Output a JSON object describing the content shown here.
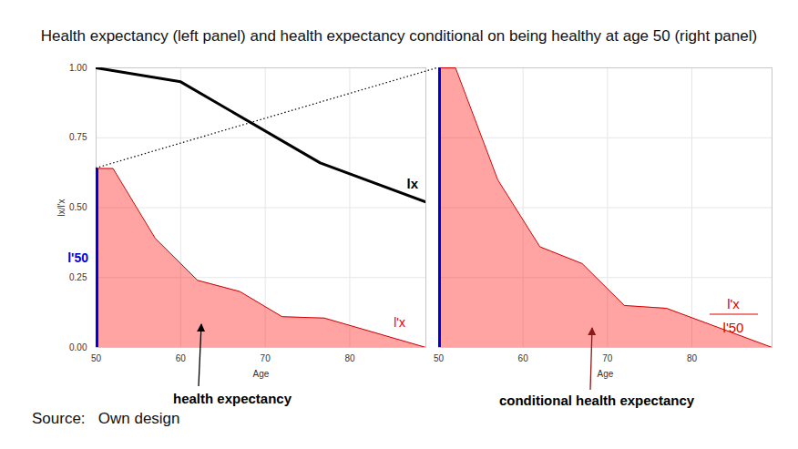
{
  "title": "Health expectancy (left panel) and health expectancy conditional on being healthy at age 50 (right panel)",
  "caption": "Source:   Own design",
  "chart_data": [
    {
      "type": "line",
      "xlabel": "Age",
      "ylabel": "lx/l'x",
      "xlim": [
        50,
        89
      ],
      "ylim": [
        0,
        1
      ],
      "xticks": [
        50,
        60,
        70,
        80
      ],
      "yticks": [
        {
          "value": 0,
          "label": "0.00"
        },
        {
          "value": 0.25,
          "label": "0.25"
        },
        {
          "value": 0.5,
          "label": "0.50"
        },
        {
          "value": 0.75,
          "label": "0.75"
        },
        {
          "value": 1,
          "label": "1.00"
        }
      ],
      "grid": true,
      "series": [
        {
          "name": "l'x",
          "type": "area",
          "color": "#ff0000",
          "x": [
            50,
            52,
            57,
            62,
            67,
            72,
            77,
            89
          ],
          "values": [
            0.64,
            0.64,
            0.39,
            0.24,
            0.2,
            0.11,
            0.105,
            0
          ]
        },
        {
          "name": "lx",
          "type": "line",
          "color": "#000000",
          "x": [
            50,
            60,
            76.5,
            89
          ],
          "values": [
            1.0,
            0.95,
            0.66,
            0.52
          ]
        },
        {
          "name": "l'50",
          "type": "rule",
          "color": "#0000dd",
          "x": [
            50
          ],
          "values": [
            0.64
          ]
        }
      ],
      "annotations": [
        {
          "text": "health expectancy",
          "color": "#000000"
        }
      ]
    },
    {
      "type": "line",
      "xlabel": "Age",
      "xlim": [
        50,
        89.5
      ],
      "ylim": [
        0,
        1
      ],
      "xticks": [
        50,
        60,
        70,
        80
      ],
      "yticks": [
        {
          "value": 0,
          "label": "0.00"
        },
        {
          "value": 0.25,
          "label": "0.25"
        },
        {
          "value": 0.5,
          "label": "0.50"
        },
        {
          "value": 0.75,
          "label": "0.75"
        },
        {
          "value": 1,
          "label": "1.00"
        }
      ],
      "grid": true,
      "tick_labels": "x",
      "series": [
        {
          "type": "area",
          "color": "#ff0000",
          "x": [
            50,
            52,
            57,
            62,
            67,
            72,
            77,
            89.5
          ],
          "values": [
            1.0,
            1.0,
            0.6,
            0.36,
            0.3,
            0.15,
            0.14,
            0
          ]
        },
        {
          "type": "rule",
          "color": "#0000dd",
          "x": [
            50
          ],
          "values": [
            1.0
          ]
        }
      ],
      "annotations": [
        {
          "text": "l'x",
          "color": "#dd0000"
        },
        {
          "text": "l'50",
          "color": "#dd0000"
        },
        {
          "text": "conditional health expectancy",
          "color": "#000000"
        }
      ]
    }
  ]
}
